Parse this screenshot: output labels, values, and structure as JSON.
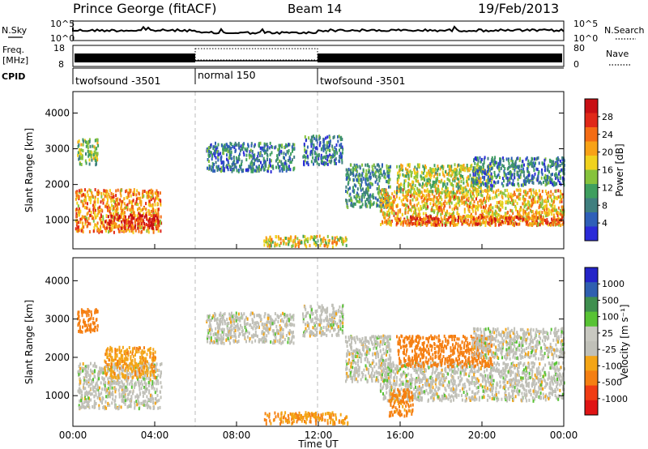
{
  "header": {
    "title": "Prince George (fitACF)",
    "beam": "Beam 14",
    "date": "19/Feb/2013"
  },
  "top_panels": {
    "nsky_label": "N.Sky",
    "nsky_ticks": [
      "10^5",
      "10^0"
    ],
    "nsearch_label": "N.Search",
    "nsearch_ticks": [
      "10^5",
      "10^0"
    ],
    "freq_label_1": "Freq.",
    "freq_label_2": "[MHz]",
    "freq_ticks": [
      "18",
      "8"
    ],
    "nave_label": "Nave",
    "nave_ticks": [
      "80",
      "0"
    ],
    "cpid_label": "CPID",
    "cpid_segments": [
      {
        "label": "twofsound -3501",
        "start_hour": 0,
        "end_hour": 6
      },
      {
        "label": "normal 150",
        "start_hour": 6,
        "end_hour": 12
      },
      {
        "label": "twofsound -3501",
        "start_hour": 12,
        "end_hour": 24
      }
    ]
  },
  "colors": {
    "power_scale": [
      "#2b2bd8",
      "#2f5fb8",
      "#3f7f7f",
      "#3f9f5f",
      "#86c33c",
      "#f0d21e",
      "#f8a216",
      "#f46c14",
      "#e02818",
      "#c80f14"
    ],
    "velocity_scale": [
      "#e01414",
      "#f03c14",
      "#f57f12",
      "#f4a516",
      "#c0c0b8",
      "#c8c8c0",
      "#58c334",
      "#3f8f4f",
      "#2f5fb0",
      "#2424c8"
    ]
  },
  "chart_data": [
    {
      "type": "heatmap",
      "panel": "power",
      "xlabel": "",
      "ylabel": "Slant Range [km]",
      "x_units": "hours UT",
      "xlim": [
        0,
        24
      ],
      "ylim": [
        200,
        4600
      ],
      "yticks": [
        "1000",
        "2000",
        "3000",
        "4000"
      ],
      "colorbar_label": "Power [dB]",
      "colorbar_ticks": [
        "4",
        "8",
        "12",
        "16",
        "20",
        "24",
        "28"
      ],
      "regions": [
        {
          "x": [
            0.1,
            4.3
          ],
          "y": [
            700,
            1900
          ],
          "level": 20
        },
        {
          "x": [
            1.5,
            4.2
          ],
          "y": [
            800,
            1200
          ],
          "level": 26
        },
        {
          "x": [
            0.2,
            1.2
          ],
          "y": [
            2600,
            3300
          ],
          "level": 12
        },
        {
          "x": [
            6.5,
            10.8
          ],
          "y": [
            2400,
            3200
          ],
          "level": 6
        },
        {
          "x": [
            9.3,
            13.4
          ],
          "y": [
            300,
            600
          ],
          "level": 16
        },
        {
          "x": [
            11.2,
            13.2
          ],
          "y": [
            2600,
            3400
          ],
          "level": 6
        },
        {
          "x": [
            13.3,
            15.5
          ],
          "y": [
            1400,
            2600
          ],
          "level": 8
        },
        {
          "x": [
            15.0,
            24.0
          ],
          "y": [
            900,
            1900
          ],
          "level": 18
        },
        {
          "x": [
            15.8,
            24.0
          ],
          "y": [
            900,
            1150
          ],
          "level": 24
        },
        {
          "x": [
            15.8,
            20.5
          ],
          "y": [
            1800,
            2600
          ],
          "level": 14
        },
        {
          "x": [
            19.5,
            24.0
          ],
          "y": [
            2000,
            2800
          ],
          "level": 6
        }
      ]
    },
    {
      "type": "heatmap",
      "panel": "velocity",
      "xlabel": "Time UT",
      "ylabel": "Slant Range [km]",
      "x_units": "hours UT",
      "xlim": [
        0,
        24
      ],
      "xticks": [
        "00:00",
        "04:00",
        "08:00",
        "12:00",
        "16:00",
        "20:00",
        "00:00"
      ],
      "ylim": [
        200,
        4600
      ],
      "yticks": [
        "1000",
        "2000",
        "3000",
        "4000"
      ],
      "colorbar_label": "Velocity [m s⁻¹]",
      "colorbar_ticks": [
        "1000",
        "500",
        "100",
        "25",
        "-25",
        "-100",
        "-500",
        "-1000"
      ],
      "regions": [
        {
          "x": [
            0.2,
            4.3
          ],
          "y": [
            700,
            1900
          ],
          "level": 0
        },
        {
          "x": [
            1.5,
            4.0
          ],
          "y": [
            1500,
            2300
          ],
          "level": -80
        },
        {
          "x": [
            0.2,
            1.2
          ],
          "y": [
            2700,
            3300
          ],
          "level": -300
        },
        {
          "x": [
            6.5,
            10.8
          ],
          "y": [
            2400,
            3200
          ],
          "level": 0
        },
        {
          "x": [
            9.3,
            13.4
          ],
          "y": [
            300,
            600
          ],
          "level": -100
        },
        {
          "x": [
            11.2,
            13.2
          ],
          "y": [
            2600,
            3400
          ],
          "level": 0
        },
        {
          "x": [
            13.3,
            15.5
          ],
          "y": [
            1400,
            2600
          ],
          "level": 0
        },
        {
          "x": [
            15.0,
            24.0
          ],
          "y": [
            900,
            1900
          ],
          "level": 0
        },
        {
          "x": [
            15.8,
            20.5
          ],
          "y": [
            1800,
            2600
          ],
          "level": -300
        },
        {
          "x": [
            15.4,
            16.6
          ],
          "y": [
            500,
            1200
          ],
          "level": -150
        },
        {
          "x": [
            19.5,
            24.0
          ],
          "y": [
            2000,
            2800
          ],
          "level": 0
        }
      ]
    }
  ]
}
